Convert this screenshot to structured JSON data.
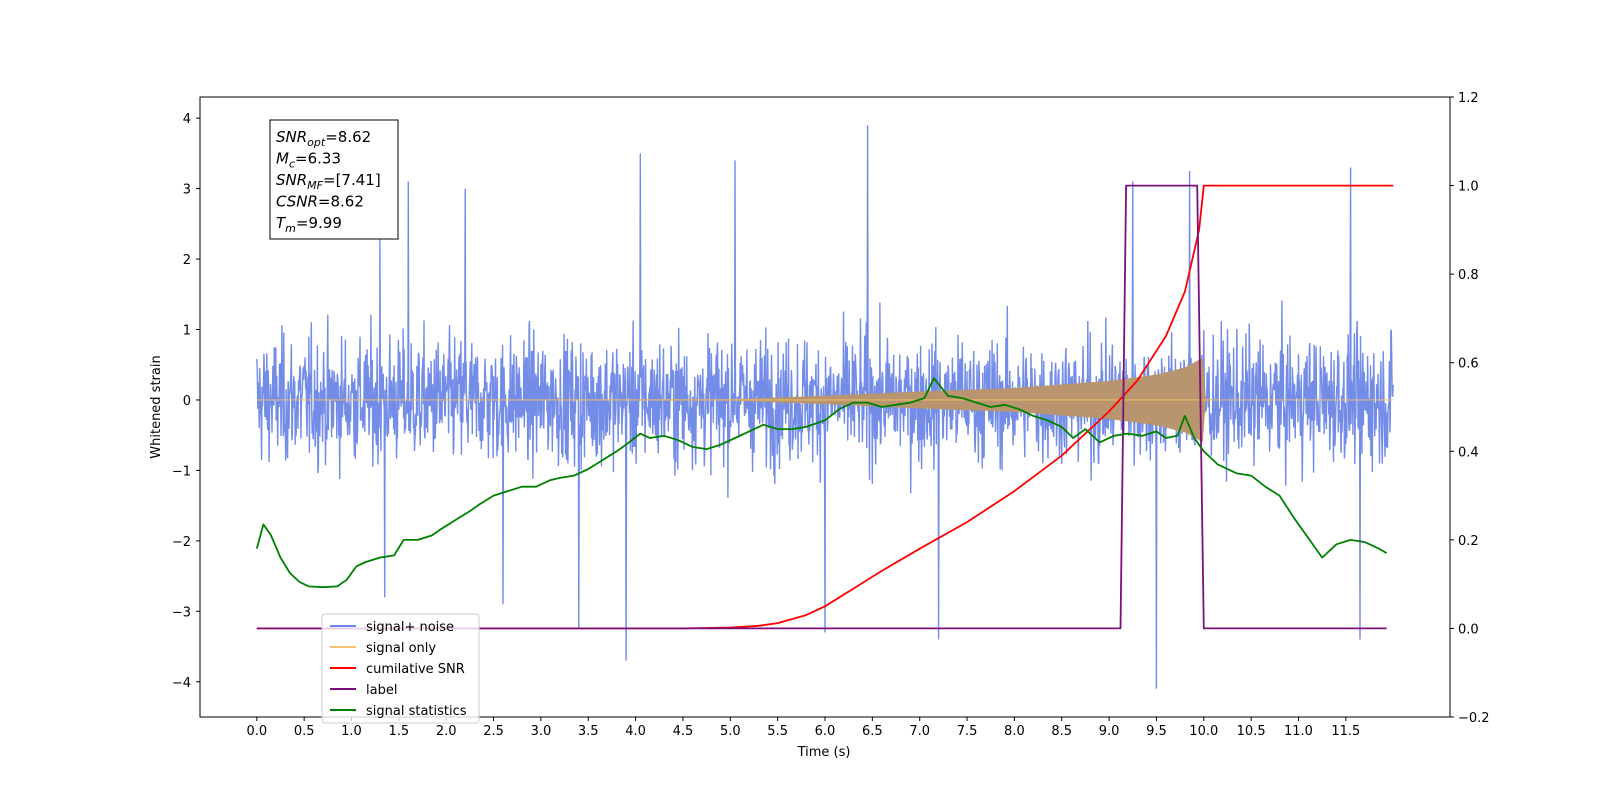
{
  "chart_data": {
    "type": "line",
    "xlabel": "Time (s)",
    "ylabel": "Whitened strain",
    "xlim": [
      -0.6,
      12.6
    ],
    "ylim": [
      -4.5,
      4.3
    ],
    "y2lim": [
      -0.2,
      1.2
    ],
    "x_ticks": [
      "0.0",
      "0.5",
      "1.0",
      "1.5",
      "2.0",
      "2.5",
      "3.0",
      "3.5",
      "4.0",
      "4.5",
      "5.0",
      "5.5",
      "6.0",
      "6.5",
      "7.0",
      "7.5",
      "8.0",
      "8.5",
      "9.0",
      "9.5",
      "10.0",
      "10.5",
      "11.0",
      "11.5"
    ],
    "y_ticks": [
      "4",
      "3",
      "2",
      "1",
      "0",
      "−1",
      "−2",
      "−3",
      "−4"
    ],
    "y2_ticks": [
      "1.2",
      "1.0",
      "0.8",
      "0.6",
      "0.4",
      "0.2",
      "0.0",
      "−0.2"
    ],
    "legend": {
      "placement": "lower-left",
      "entries": [
        {
          "label": "signal+ noise",
          "color": "#6b86e6"
        },
        {
          "label": "signal only",
          "color": "#f5c26b"
        },
        {
          "label": "cumilative SNR",
          "color": "#ff0000"
        },
        {
          "label": "label",
          "color": "#7b0f7b"
        },
        {
          "label": "signal statistics",
          "color": "#008000"
        }
      ]
    },
    "info_box": [
      {
        "name": "SNR",
        "sub": "opt",
        "value": "=8.62"
      },
      {
        "name": "M",
        "sub": "c",
        "value": "=6.33"
      },
      {
        "name": "SNR",
        "sub": "MF",
        "value": "=[7.41]"
      },
      {
        "name": "CSNR",
        "sub": "",
        "value": "=8.62"
      },
      {
        "name": "T",
        "sub": "m",
        "value": "=9.99"
      }
    ],
    "series": [
      {
        "name": "signal+ noise",
        "axis": "left",
        "kind": "noise",
        "color": "#6b86e6",
        "x_range": [
          0.0,
          12.0
        ],
        "envelope": 1.6,
        "peaks": [
          [
            1.3,
            2.3
          ],
          [
            1.35,
            -2.8
          ],
          [
            1.6,
            3.1
          ],
          [
            2.2,
            3.0
          ],
          [
            2.6,
            -2.9
          ],
          [
            3.4,
            -3.25
          ],
          [
            3.9,
            -3.7
          ],
          [
            4.05,
            3.5
          ],
          [
            5.05,
            3.4
          ],
          [
            6.0,
            -3.3
          ],
          [
            6.45,
            3.9
          ],
          [
            7.2,
            -3.4
          ],
          [
            9.25,
            3.1
          ],
          [
            9.5,
            -4.1
          ],
          [
            9.85,
            3.25
          ],
          [
            11.55,
            3.3
          ],
          [
            11.65,
            -3.4
          ]
        ]
      },
      {
        "name": "signal only",
        "axis": "left",
        "kind": "chirp",
        "color": "#f5c26b",
        "fill": "#b8956e",
        "x_range": [
          0.0,
          12.0
        ],
        "amplitude": [
          [
            0.0,
            0.0
          ],
          [
            5.0,
            0.01
          ],
          [
            6.0,
            0.06
          ],
          [
            7.0,
            0.12
          ],
          [
            8.0,
            0.17
          ],
          [
            8.5,
            0.22
          ],
          [
            9.0,
            0.27
          ],
          [
            9.5,
            0.36
          ],
          [
            9.8,
            0.46
          ],
          [
            9.99,
            0.6
          ],
          [
            10.0,
            0.03
          ],
          [
            10.1,
            0.0
          ],
          [
            12.0,
            0.0
          ]
        ]
      },
      {
        "name": "cumilative SNR",
        "axis": "right",
        "color": "#ff0000",
        "points": [
          [
            0.0,
            0.0
          ],
          [
            4.0,
            0.0
          ],
          [
            4.5,
            0.0
          ],
          [
            5.0,
            0.002
          ],
          [
            5.3,
            0.006
          ],
          [
            5.5,
            0.012
          ],
          [
            5.8,
            0.03
          ],
          [
            6.0,
            0.05
          ],
          [
            6.3,
            0.09
          ],
          [
            6.6,
            0.13
          ],
          [
            7.0,
            0.18
          ],
          [
            7.5,
            0.24
          ],
          [
            8.0,
            0.31
          ],
          [
            8.5,
            0.39
          ],
          [
            9.0,
            0.49
          ],
          [
            9.3,
            0.56
          ],
          [
            9.6,
            0.66
          ],
          [
            9.8,
            0.76
          ],
          [
            9.95,
            0.9
          ],
          [
            10.0,
            1.0
          ],
          [
            12.0,
            1.0
          ]
        ]
      },
      {
        "name": "label",
        "axis": "right",
        "color": "#7b0f7b",
        "points": [
          [
            0.0,
            0.0
          ],
          [
            9.12,
            0.0
          ],
          [
            9.18,
            1.0
          ],
          [
            9.93,
            1.0
          ],
          [
            10.0,
            0.0
          ],
          [
            11.93,
            0.0
          ]
        ]
      },
      {
        "name": "signal statistics",
        "axis": "right",
        "color": "#008000",
        "points": [
          [
            0.0,
            0.18
          ],
          [
            0.07,
            0.235
          ],
          [
            0.15,
            0.21
          ],
          [
            0.25,
            0.16
          ],
          [
            0.35,
            0.125
          ],
          [
            0.45,
            0.105
          ],
          [
            0.55,
            0.095
          ],
          [
            0.7,
            0.093
          ],
          [
            0.85,
            0.095
          ],
          [
            0.95,
            0.11
          ],
          [
            1.05,
            0.14
          ],
          [
            1.15,
            0.15
          ],
          [
            1.3,
            0.16
          ],
          [
            1.45,
            0.165
          ],
          [
            1.55,
            0.2
          ],
          [
            1.7,
            0.2
          ],
          [
            1.85,
            0.21
          ],
          [
            1.95,
            0.225
          ],
          [
            2.1,
            0.245
          ],
          [
            2.25,
            0.265
          ],
          [
            2.35,
            0.28
          ],
          [
            2.5,
            0.3
          ],
          [
            2.65,
            0.31
          ],
          [
            2.8,
            0.32
          ],
          [
            2.95,
            0.32
          ],
          [
            3.1,
            0.335
          ],
          [
            3.2,
            0.34
          ],
          [
            3.35,
            0.345
          ],
          [
            3.5,
            0.36
          ],
          [
            3.65,
            0.38
          ],
          [
            3.8,
            0.4
          ],
          [
            3.9,
            0.415
          ],
          [
            4.05,
            0.44
          ],
          [
            4.15,
            0.43
          ],
          [
            4.3,
            0.435
          ],
          [
            4.45,
            0.425
          ],
          [
            4.6,
            0.41
          ],
          [
            4.75,
            0.405
          ],
          [
            4.9,
            0.415
          ],
          [
            5.05,
            0.43
          ],
          [
            5.2,
            0.445
          ],
          [
            5.35,
            0.46
          ],
          [
            5.5,
            0.45
          ],
          [
            5.65,
            0.45
          ],
          [
            5.8,
            0.455
          ],
          [
            6.0,
            0.47
          ],
          [
            6.15,
            0.495
          ],
          [
            6.3,
            0.51
          ],
          [
            6.45,
            0.51
          ],
          [
            6.6,
            0.5
          ],
          [
            6.75,
            0.505
          ],
          [
            6.9,
            0.51
          ],
          [
            7.05,
            0.52
          ],
          [
            7.15,
            0.565
          ],
          [
            7.3,
            0.525
          ],
          [
            7.45,
            0.52
          ],
          [
            7.6,
            0.51
          ],
          [
            7.75,
            0.5
          ],
          [
            7.9,
            0.505
          ],
          [
            8.05,
            0.495
          ],
          [
            8.2,
            0.48
          ],
          [
            8.35,
            0.47
          ],
          [
            8.5,
            0.455
          ],
          [
            8.62,
            0.43
          ],
          [
            8.75,
            0.45
          ],
          [
            8.9,
            0.42
          ],
          [
            9.05,
            0.435
          ],
          [
            9.2,
            0.44
          ],
          [
            9.35,
            0.435
          ],
          [
            9.5,
            0.445
          ],
          [
            9.6,
            0.43
          ],
          [
            9.72,
            0.435
          ],
          [
            9.8,
            0.48
          ],
          [
            9.9,
            0.43
          ],
          [
            10.0,
            0.4
          ],
          [
            10.15,
            0.37
          ],
          [
            10.35,
            0.35
          ],
          [
            10.5,
            0.345
          ],
          [
            10.65,
            0.32
          ],
          [
            10.8,
            0.3
          ],
          [
            10.95,
            0.25
          ],
          [
            11.1,
            0.205
          ],
          [
            11.25,
            0.16
          ],
          [
            11.4,
            0.19
          ],
          [
            11.55,
            0.2
          ],
          [
            11.7,
            0.195
          ],
          [
            11.85,
            0.18
          ],
          [
            11.93,
            0.17
          ]
        ]
      }
    ]
  }
}
